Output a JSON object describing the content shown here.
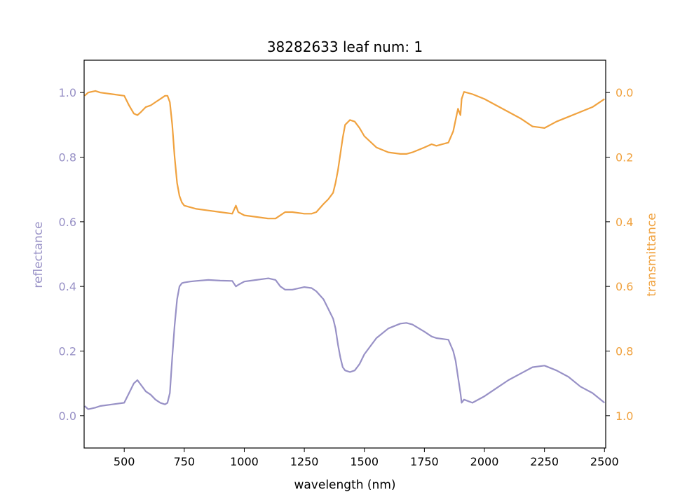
{
  "chart_data": {
    "type": "line",
    "title": "38282633 leaf num: 1",
    "xlabel": "wavelength (nm)",
    "ylabel_left": "reflectance",
    "ylabel_right": "transmittance",
    "xlim": [
      333,
      2505
    ],
    "ylim_left": [
      -0.1,
      1.1
    ],
    "ylim_right": [
      1.1,
      -0.1
    ],
    "right_axis_inverted": true,
    "grid": false,
    "x_ticks": [
      500,
      750,
      1000,
      1250,
      1500,
      1750,
      2000,
      2250,
      2500
    ],
    "x_tick_labels": [
      "500",
      "750",
      "1000",
      "1250",
      "1500",
      "1750",
      "2000",
      "2250",
      "2500"
    ],
    "y_left_ticks": [
      0.0,
      0.2,
      0.4,
      0.6,
      0.8,
      1.0
    ],
    "y_left_tick_labels": [
      "0.0",
      "0.2",
      "0.4",
      "0.6",
      "0.8",
      "1.0"
    ],
    "y_right_ticks": [
      0.0,
      0.2,
      0.4,
      0.6,
      0.8,
      1.0
    ],
    "y_right_tick_labels": [
      "0.0",
      "0.2",
      "0.4",
      "0.6",
      "0.8",
      "1.0"
    ],
    "colors": {
      "reflectance": "#9891c6",
      "transmittance": "#f0a23f"
    },
    "series": [
      {
        "axis": "left",
        "x": [
          335,
          350,
          380,
          400,
          450,
          500,
          520,
          540,
          555,
          570,
          590,
          610,
          630,
          650,
          670,
          680,
          690,
          700,
          710,
          720,
          730,
          740,
          750,
          775,
          800,
          850,
          900,
          950,
          965,
          975,
          1000,
          1050,
          1100,
          1130,
          1150,
          1170,
          1200,
          1250,
          1280,
          1300,
          1330,
          1350,
          1370,
          1380,
          1390,
          1400,
          1410,
          1420,
          1440,
          1460,
          1480,
          1500,
          1550,
          1600,
          1650,
          1675,
          1700,
          1750,
          1780,
          1800,
          1850,
          1870,
          1880,
          1890,
          1900,
          1905,
          1915,
          1950,
          2000,
          2050,
          2100,
          2150,
          2200,
          2250,
          2300,
          2350,
          2400,
          2450,
          2500
        ],
        "y": [
          0.03,
          0.02,
          0.025,
          0.03,
          0.035,
          0.04,
          0.07,
          0.1,
          0.11,
          0.095,
          0.075,
          0.065,
          0.05,
          0.04,
          0.035,
          0.04,
          0.07,
          0.18,
          0.28,
          0.36,
          0.4,
          0.41,
          0.412,
          0.415,
          0.417,
          0.42,
          0.418,
          0.417,
          0.4,
          0.405,
          0.415,
          0.42,
          0.425,
          0.42,
          0.4,
          0.39,
          0.39,
          0.398,
          0.395,
          0.385,
          0.36,
          0.33,
          0.3,
          0.27,
          0.22,
          0.18,
          0.15,
          0.14,
          0.135,
          0.14,
          0.16,
          0.19,
          0.24,
          0.27,
          0.285,
          0.287,
          0.282,
          0.26,
          0.245,
          0.24,
          0.235,
          0.2,
          0.17,
          0.12,
          0.07,
          0.04,
          0.05,
          0.04,
          0.06,
          0.085,
          0.11,
          0.13,
          0.15,
          0.155,
          0.14,
          0.12,
          0.09,
          0.07,
          0.04
        ]
      },
      {
        "axis": "right",
        "x": [
          335,
          350,
          380,
          400,
          450,
          500,
          520,
          540,
          555,
          570,
          590,
          610,
          630,
          650,
          670,
          680,
          690,
          700,
          710,
          720,
          730,
          740,
          750,
          775,
          800,
          850,
          900,
          950,
          965,
          975,
          1000,
          1050,
          1100,
          1130,
          1150,
          1170,
          1200,
          1250,
          1280,
          1300,
          1330,
          1350,
          1370,
          1380,
          1390,
          1400,
          1410,
          1420,
          1440,
          1460,
          1480,
          1500,
          1550,
          1600,
          1650,
          1675,
          1700,
          1750,
          1780,
          1800,
          1850,
          1870,
          1880,
          1890,
          1900,
          1905,
          1915,
          1950,
          2000,
          2050,
          2100,
          2150,
          2200,
          2250,
          2300,
          2350,
          2400,
          2450,
          2500
        ],
        "y": [
          0.01,
          0.0,
          -0.005,
          0.0,
          0.005,
          0.01,
          0.04,
          0.065,
          0.07,
          0.06,
          0.045,
          0.04,
          0.03,
          0.02,
          0.01,
          0.01,
          0.03,
          0.1,
          0.2,
          0.28,
          0.32,
          0.34,
          0.35,
          0.355,
          0.36,
          0.365,
          0.37,
          0.375,
          0.35,
          0.37,
          0.38,
          0.385,
          0.39,
          0.39,
          0.38,
          0.37,
          0.37,
          0.375,
          0.375,
          0.37,
          0.345,
          0.33,
          0.31,
          0.28,
          0.24,
          0.19,
          0.14,
          0.1,
          0.085,
          0.09,
          0.11,
          0.135,
          0.17,
          0.185,
          0.19,
          0.19,
          0.185,
          0.17,
          0.16,
          0.165,
          0.155,
          0.12,
          0.085,
          0.05,
          0.07,
          0.02,
          -0.002,
          0.005,
          0.02,
          0.04,
          0.06,
          0.08,
          0.105,
          0.11,
          0.09,
          0.075,
          0.06,
          0.045,
          0.02
        ]
      }
    ]
  }
}
